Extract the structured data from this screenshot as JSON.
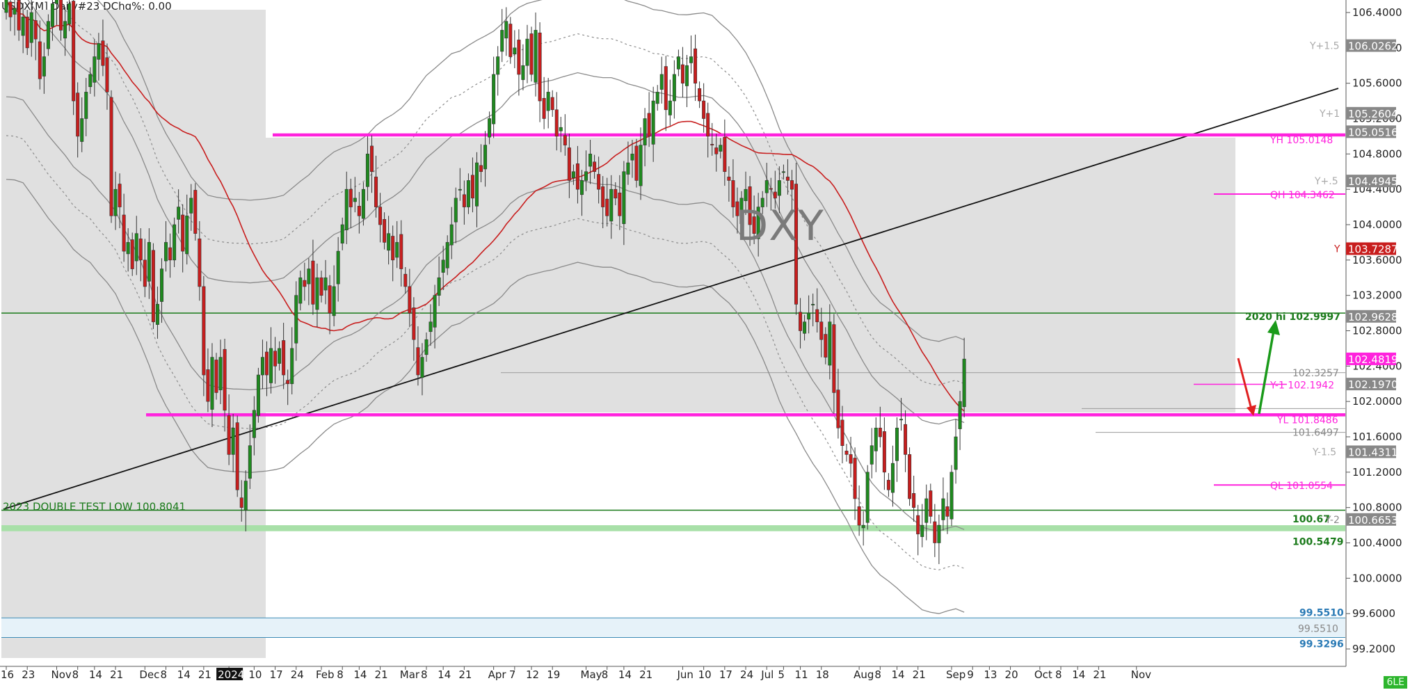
{
  "header": {
    "text": "USDX[M] Daily#23 DChg%: 0.00"
  },
  "watermark": "DXY",
  "badge": "6LE",
  "chart_data": {
    "type": "candlestick",
    "symbol": "USDX[M]",
    "title": "DXY",
    "timeframe": "Daily",
    "ylim": [
      99.0,
      106.6
    ],
    "yticks": [
      106.4,
      106.0,
      105.6,
      105.2,
      104.8,
      104.4,
      104.0,
      103.6,
      103.2,
      102.8,
      102.4,
      102.0,
      101.6,
      101.2,
      100.8,
      100.4,
      100.0,
      99.6,
      99.2
    ],
    "xticks": [
      {
        "label": "16",
        "i": 0
      },
      {
        "label": "23",
        "i": 5
      },
      {
        "label": "Nov",
        "i": 12
      },
      {
        "label": "8",
        "i": 17
      },
      {
        "label": "14",
        "i": 21
      },
      {
        "label": "21",
        "i": 26
      },
      {
        "label": "Dec",
        "i": 33
      },
      {
        "label": "8",
        "i": 38
      },
      {
        "label": "14",
        "i": 42
      },
      {
        "label": "21",
        "i": 47
      },
      {
        "label": "2024",
        "i": 53,
        "highlight": true
      },
      {
        "label": "10",
        "i": 59
      },
      {
        "label": "17",
        "i": 64
      },
      {
        "label": "24",
        "i": 69
      },
      {
        "label": "Feb",
        "i": 75
      },
      {
        "label": "8",
        "i": 80
      },
      {
        "label": "14",
        "i": 84
      },
      {
        "label": "21",
        "i": 89
      },
      {
        "label": "Mar",
        "i": 95
      },
      {
        "label": "8",
        "i": 100
      },
      {
        "label": "14",
        "i": 104
      },
      {
        "label": "21",
        "i": 109
      },
      {
        "label": "Apr",
        "i": 116
      },
      {
        "label": "7",
        "i": 121
      },
      {
        "label": "12",
        "i": 125
      },
      {
        "label": "19",
        "i": 130
      },
      {
        "label": "May",
        "i": 138
      },
      {
        "label": "8",
        "i": 143
      },
      {
        "label": "14",
        "i": 147
      },
      {
        "label": "21",
        "i": 152
      },
      {
        "label": "Jun",
        "i": 161
      },
      {
        "label": "10",
        "i": 166
      },
      {
        "label": "17",
        "i": 171
      },
      {
        "label": "24",
        "i": 176
      },
      {
        "label": "Jul",
        "i": 181
      },
      {
        "label": "5",
        "i": 185
      },
      {
        "label": "11",
        "i": 189
      },
      {
        "label": "18",
        "i": 194
      },
      {
        "label": "Aug",
        "i": 203
      },
      {
        "label": "8",
        "i": 208
      },
      {
        "label": "14",
        "i": 212
      },
      {
        "label": "21",
        "i": 217
      },
      {
        "label": "Sep",
        "i": 225
      },
      {
        "label": "9",
        "i": 230
      },
      {
        "label": "13",
        "i": 234
      },
      {
        "label": "20",
        "i": 239
      },
      {
        "label": "Oct",
        "i": 246
      },
      {
        "label": "8",
        "i": 251
      },
      {
        "label": "14",
        "i": 255
      },
      {
        "label": "21",
        "i": 260
      },
      {
        "label": "Nov",
        "i": 269
      }
    ],
    "closes": [
      106.55,
      106.35,
      106.45,
      106.2,
      106.35,
      106.0,
      106.4,
      106.1,
      105.65,
      105.9,
      106.3,
      106.5,
      106.55,
      106.2,
      106.3,
      106.5,
      105.4,
      105.0,
      105.2,
      105.5,
      105.7,
      105.9,
      106.05,
      105.8,
      105.5,
      104.1,
      104.4,
      104.2,
      103.7,
      103.8,
      103.5,
      103.9,
      103.6,
      103.3,
      103.8,
      102.9,
      103.1,
      103.5,
      103.8,
      103.6,
      104.0,
      104.2,
      103.7,
      104.1,
      104.3,
      103.9,
      103.3,
      102.3,
      102.0,
      102.5,
      102.1,
      102.5,
      101.9,
      101.4,
      101.7,
      101.0,
      100.8,
      101.1,
      101.5,
      101.9,
      102.3,
      102.5,
      102.3,
      102.6,
      102.4,
      102.6,
      102.3,
      102.2,
      102.6,
      103.2,
      103.4,
      103.3,
      103.5,
      103.1,
      103.4,
      103.2,
      103.4,
      103.0,
      103.3,
      103.7,
      104.0,
      104.4,
      104.2,
      104.3,
      104.1,
      104.4,
      104.8,
      104.6,
      104.2,
      104.0,
      103.8,
      103.9,
      103.6,
      103.8,
      103.5,
      103.3,
      103.0,
      102.7,
      102.3,
      102.5,
      102.7,
      102.9,
      103.2,
      103.4,
      103.6,
      103.8,
      104.0,
      104.3,
      104.4,
      104.2,
      104.5,
      104.3,
      104.7,
      104.6,
      104.9,
      105.2,
      105.7,
      105.9,
      106.2,
      106.3,
      105.9,
      106.0,
      105.7,
      105.8,
      106.1,
      105.7,
      106.2,
      105.4,
      105.2,
      105.5,
      105.3,
      105.0,
      105.1,
      104.9,
      104.5,
      104.6,
      104.4,
      104.5,
      104.6,
      104.8,
      104.6,
      104.4,
      104.2,
      104.1,
      104.4,
      104.3,
      104.1,
      104.6,
      104.7,
      104.8,
      104.5,
      104.9,
      105.2,
      105.0,
      105.4,
      105.5,
      105.7,
      105.3,
      105.4,
      105.7,
      105.9,
      105.6,
      105.8,
      105.9,
      105.6,
      105.4,
      105.2,
      105.0,
      104.9,
      104.8,
      104.9,
      104.6,
      104.5,
      104.2,
      104.1,
      104.3,
      104.4,
      104.0,
      103.9,
      104.2,
      104.3,
      104.5,
      104.4,
      104.3,
      104.5,
      104.6,
      104.5,
      104.4,
      103.1,
      102.8,
      102.9,
      103.0,
      103.1,
      102.9,
      102.7,
      102.5,
      102.9,
      102.1,
      101.7,
      101.5,
      101.4,
      101.3,
      100.9,
      100.6,
      100.6,
      101.2,
      101.5,
      101.7,
      101.6,
      101.2,
      101.0,
      101.3,
      101.7,
      101.8,
      101.4,
      100.9,
      100.8,
      100.5,
      100.6,
      100.9,
      100.7,
      100.4,
      100.6,
      100.9,
      100.7,
      101.2,
      101.6,
      102.0,
      102.48
    ],
    "horizontal_levels": [
      {
        "label": "2020 hi",
        "value": 102.9997,
        "color": "green"
      },
      {
        "label": "",
        "value": 100.67,
        "color": "green"
      },
      {
        "label": "",
        "value": 100.5479,
        "color": "lightgreen"
      },
      {
        "label": "",
        "value": 99.551,
        "color": "steelblue"
      },
      {
        "label": "",
        "value": 99.3296,
        "color": "steelblue"
      },
      {
        "label": "",
        "value": 105.0148,
        "color": "magenta"
      },
      {
        "label": "",
        "value": 101.8486,
        "color": "magenta"
      },
      {
        "label": "QH",
        "value": 104.3462,
        "color": "magenta"
      },
      {
        "label": "Y-1",
        "value": 102.1942,
        "color": "magenta"
      },
      {
        "label": "QL",
        "value": 101.0554,
        "color": "magenta"
      }
    ],
    "annotations": [
      {
        "text": "2023 DOUBLE TEST LOW  100.8041",
        "color": "green"
      },
      {
        "text": "2020 hi  102.9997",
        "color": "green"
      },
      {
        "text": "100.67",
        "color": "green"
      },
      {
        "text": "100.5479",
        "color": "green"
      },
      {
        "text": "99.5510",
        "color": "steelblue"
      },
      {
        "text": "99.3296",
        "color": "steelblue"
      },
      {
        "text": "YH  105.0148",
        "color": "magenta"
      },
      {
        "text": "QH  104.3462",
        "color": "magenta"
      },
      {
        "text": "Y-1  102.1942",
        "color": "magenta"
      },
      {
        "text": "YL  101.8486",
        "color": "magenta"
      },
      {
        "text": "QL  101.0554",
        "color": "magenta"
      },
      {
        "text": "Y+1.5",
        "color": "gray"
      },
      {
        "text": "Y+1",
        "color": "gray"
      },
      {
        "text": "Y+.5",
        "color": "gray"
      },
      {
        "text": "Y",
        "color": "red"
      },
      {
        "text": "Y-1.5",
        "color": "gray"
      },
      {
        "text": "Y-2",
        "color": "gray"
      },
      {
        "text": "102.3257",
        "color": "gray"
      },
      {
        "text": "101.6497",
        "color": "gray"
      },
      {
        "text": "99.5510",
        "color": "gray"
      }
    ],
    "price_tags": [
      {
        "text": "106.0262",
        "bg": "#888888"
      },
      {
        "text": "105.2604",
        "bg": "#888888"
      },
      {
        "text": "105.0516",
        "bg": "#888888"
      },
      {
        "text": "104.4945",
        "bg": "#888888"
      },
      {
        "text": "103.7287",
        "bg": "#c81e1e"
      },
      {
        "text": "102.9628",
        "bg": "#888888"
      },
      {
        "text": "102.4819",
        "bg": "#ff22dd"
      },
      {
        "text": "102.1970",
        "bg": "#888888"
      },
      {
        "text": "101.4311",
        "bg": "#888888"
      },
      {
        "text": "100.6653",
        "bg": "#888888"
      }
    ],
    "colors": {
      "up": "#1f8a1f",
      "down": "#c81e1e",
      "magenta": "#ff22dd",
      "green": "#1a7a1a",
      "shade": "#e0e0e0"
    }
  }
}
